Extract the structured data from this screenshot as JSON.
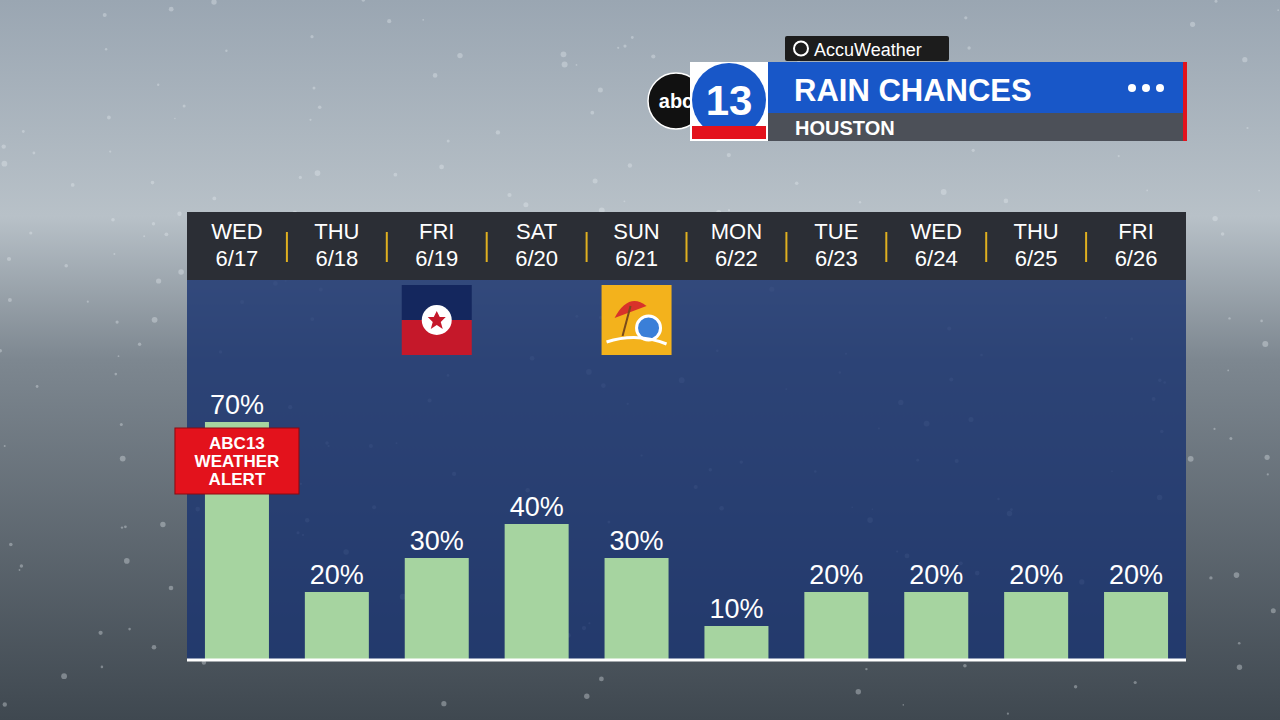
{
  "chart_data": {
    "type": "bar",
    "title": "RAIN CHANCES",
    "subtitle": "HOUSTON",
    "branding": {
      "network": "abc",
      "channel": "13",
      "source": "AccuWeather"
    },
    "categories": [
      "WED 6/17",
      "THU 6/18",
      "FRI 6/19",
      "SAT 6/20",
      "SUN 6/21",
      "MON 6/22",
      "TUE 6/23",
      "WED 6/24",
      "THU 6/25",
      "FRI 6/26"
    ],
    "values": [
      70,
      20,
      30,
      40,
      30,
      10,
      20,
      20,
      20,
      20
    ],
    "value_labels": [
      "70%",
      "20%",
      "30%",
      "40%",
      "30%",
      "10%",
      "20%",
      "20%",
      "20%",
      "20%"
    ],
    "color": "#a6d4a0",
    "ylim": [
      0,
      100
    ],
    "yticks": [],
    "grid": false,
    "tick_labels": "x",
    "data_labels": true,
    "annotations": [
      {
        "text": "ABC13 WEATHER ALERT",
        "category": "WED 6/17"
      }
    ]
  }
}
